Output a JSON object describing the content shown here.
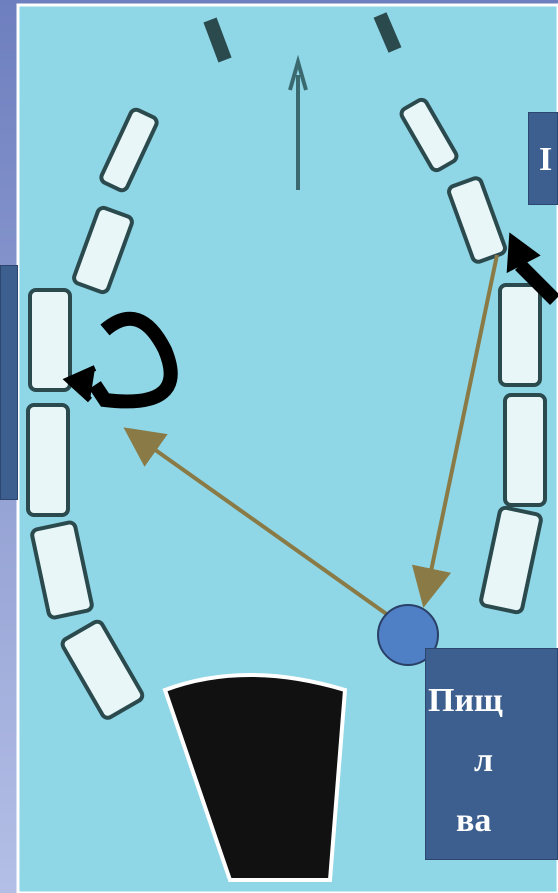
{
  "callouts": {
    "top_right": "I",
    "bottom_right": [
      "Пищ",
      "л",
      "ва"
    ]
  }
}
